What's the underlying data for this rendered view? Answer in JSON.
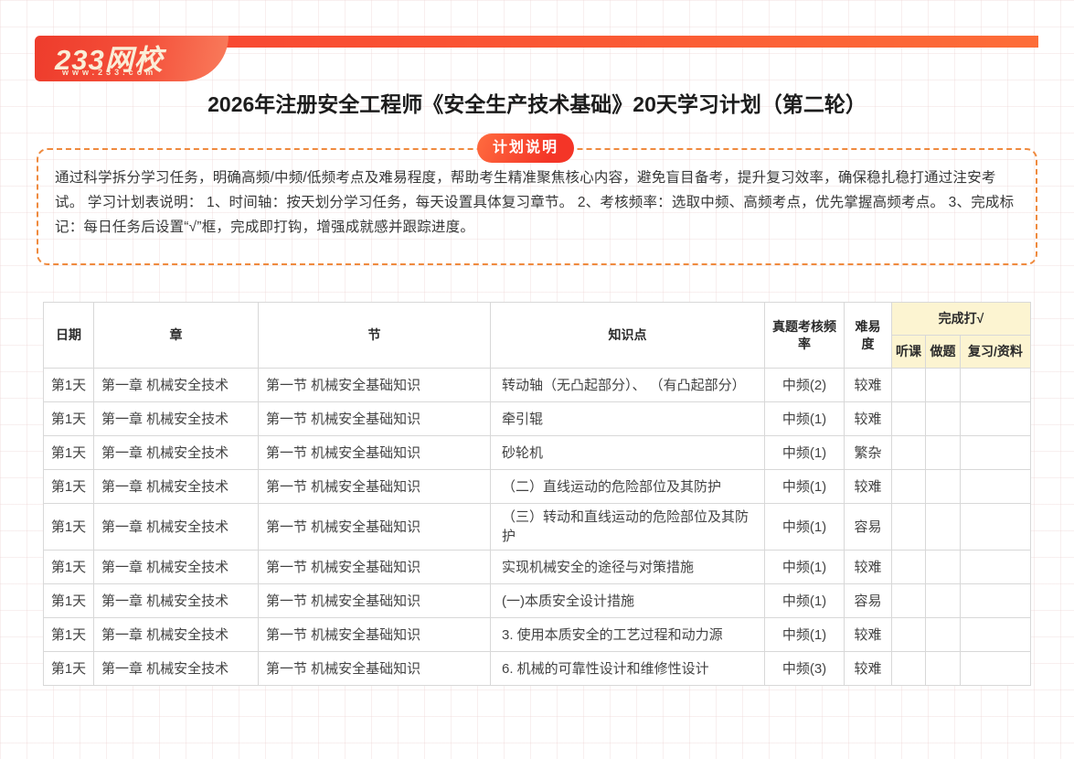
{
  "brand": {
    "name": "233网校",
    "url": "www.233.com"
  },
  "title": "2026年注册安全工程师《安全生产技术基础》20天学习计划（第二轮）",
  "note": {
    "badge": "计划说明",
    "body": "通过科学拆分学习任务，明确高频/中频/低频考点及难易程度，帮助考生精准聚焦核心内容，避免盲目备考，提升复习效率，确保稳扎稳打通过注安考试。 学习计划表说明： 1、时间轴：按天划分学习任务，每天设置具体复习章节。 2、考核频率：选取中频、高频考点，优先掌握高频考点。 3、完成标记：每日任务后设置“√”框，完成即打钩，增强成就感并跟踪进度。"
  },
  "table": {
    "columns": [
      {
        "key": "day",
        "label": "日期"
      },
      {
        "key": "chapter",
        "label": "章"
      },
      {
        "key": "section",
        "label": "节"
      },
      {
        "key": "knowledge",
        "label": "知识点"
      },
      {
        "key": "frequency",
        "label": "真题考核频率"
      },
      {
        "key": "difficulty",
        "label": "难易度"
      }
    ],
    "check_group": {
      "label": "完成打√",
      "subcolumns": [
        {
          "key": "listen",
          "label": "听课"
        },
        {
          "key": "practice",
          "label": "做题"
        },
        {
          "key": "review",
          "label": "复习/资料"
        }
      ]
    },
    "rows": [
      {
        "day": "第1天",
        "chapter": "第一章 机械安全技术",
        "section": "第一节 机械安全基础知识",
        "knowledge": "转动轴（无凸起部分）、 （有凸起部分）",
        "frequency": "中频(2)",
        "difficulty": "较难",
        "listen": "",
        "practice": "",
        "review": ""
      },
      {
        "day": "第1天",
        "chapter": "第一章 机械安全技术",
        "section": "第一节 机械安全基础知识",
        "knowledge": "牵引辊",
        "frequency": "中频(1)",
        "difficulty": "较难",
        "listen": "",
        "practice": "",
        "review": ""
      },
      {
        "day": "第1天",
        "chapter": "第一章 机械安全技术",
        "section": "第一节 机械安全基础知识",
        "knowledge": "砂轮机",
        "frequency": "中频(1)",
        "difficulty": "繁杂",
        "listen": "",
        "practice": "",
        "review": ""
      },
      {
        "day": "第1天",
        "chapter": "第一章 机械安全技术",
        "section": "第一节 机械安全基础知识",
        "knowledge": " （二）直线运动的危险部位及其防护",
        "frequency": "中频(1)",
        "difficulty": "较难",
        "listen": "",
        "practice": "",
        "review": ""
      },
      {
        "day": "第1天",
        "chapter": "第一章 机械安全技术",
        "section": "第一节 机械安全基础知识",
        "knowledge": " （三）转动和直线运动的危险部位及其防护",
        "frequency": "中频(1)",
        "difficulty": "容易",
        "listen": "",
        "practice": "",
        "review": ""
      },
      {
        "day": "第1天",
        "chapter": "第一章 机械安全技术",
        "section": "第一节 机械安全基础知识",
        "knowledge": "实现机械安全的途径与对策措施",
        "frequency": "中频(1)",
        "difficulty": "较难",
        "listen": "",
        "practice": "",
        "review": ""
      },
      {
        "day": "第1天",
        "chapter": "第一章 机械安全技术",
        "section": "第一节 机械安全基础知识",
        "knowledge": "(一)本质安全设计措施",
        "frequency": "中频(1)",
        "difficulty": "容易",
        "listen": "",
        "practice": "",
        "review": ""
      },
      {
        "day": "第1天",
        "chapter": "第一章 机械安全技术",
        "section": "第一节 机械安全基础知识",
        "knowledge": "3. 使用本质安全的工艺过程和动力源",
        "frequency": "中频(1)",
        "difficulty": "较难",
        "listen": "",
        "practice": "",
        "review": ""
      },
      {
        "day": "第1天",
        "chapter": "第一章 机械安全技术",
        "section": "第一节 机械安全基础知识",
        "knowledge": "6. 机械的可靠性设计和维修性设计",
        "frequency": "中频(3)",
        "difficulty": "较难",
        "listen": "",
        "practice": "",
        "review": ""
      }
    ]
  },
  "colors": {
    "banner_red_left": "#f84731",
    "banner_orange_right": "#fd6d38",
    "logo_cream": "#faeed8",
    "badge_red": "#f43527",
    "dashed_border_orange": "#ef8a3e",
    "check_header_yellow": "#fcf4d1",
    "table_border_gray": "#d8d8d8",
    "body_text": "#373737"
  }
}
